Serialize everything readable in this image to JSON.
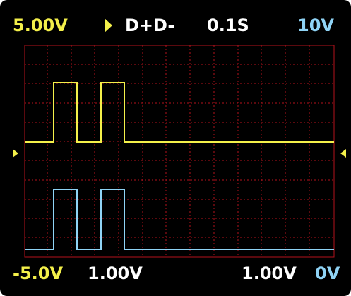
{
  "top_bar": {
    "ch1_scale": "5.00V",
    "trigger_mode_icon": "play-triangle-icon",
    "channel_mode": "D+D-",
    "timebase": "0.1S",
    "ch2_offset": "10V"
  },
  "bottom_bar": {
    "ch1_offset": "-5.0V",
    "ch1_volts_div": "1.00V",
    "ch2_volts_div": "1.00V",
    "ch2_offset": "0V"
  },
  "colors": {
    "ch1": "#f4f04a",
    "ch2": "#8fd3f5",
    "grid": "#b3121d",
    "background": "#000000"
  },
  "icons": {
    "left_marker": "left-triangle-icon",
    "right_marker": "right-triangle-icon"
  }
}
